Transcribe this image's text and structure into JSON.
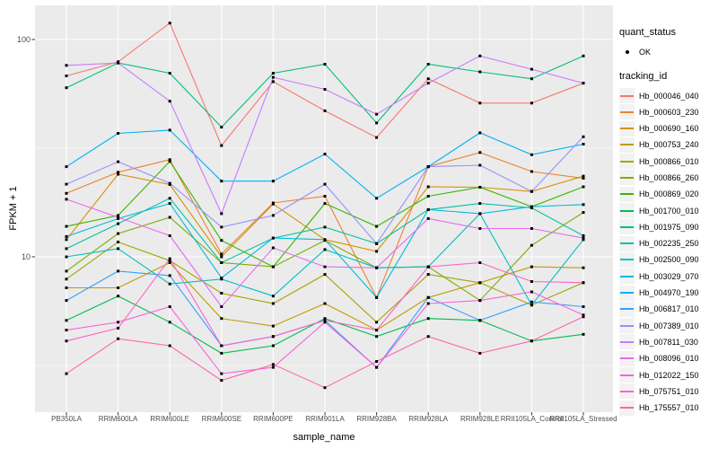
{
  "chart_data": {
    "type": "line",
    "title": "",
    "xlabel": "sample_name",
    "ylabel": "FPKM + 1",
    "y_scale": "log10",
    "ylim": [
      1.9,
      140
    ],
    "grid": true,
    "legend_position": "right",
    "x_categories": [
      "PB350LA",
      "RRIM600LA",
      "RRIM600LE",
      "RRIM600SE",
      "RRIM600PE",
      "RRIM901LA",
      "RRIM928BA",
      "RRIM928LA",
      "RRIM928LE",
      "RRII105LA_Control",
      "RRII105LA_Stressed"
    ],
    "y_ticks": [
      {
        "value": 100,
        "label": "100"
      },
      {
        "value": 10,
        "label": "10"
      }
    ],
    "y_minor_ticks": [
      31.623,
      3.1623
    ],
    "legend": {
      "quant_status": {
        "title": "quant_status",
        "items": [
          {
            "label": "OK",
            "marker": "point",
            "color": "#000000"
          }
        ]
      },
      "tracking_id": {
        "title": "tracking_id"
      }
    },
    "series": [
      {
        "name": "Hb_000046_040",
        "color": "#F8766D",
        "values": [
          68,
          79,
          119,
          32.5,
          64,
          47,
          35.4,
          66,
          51,
          51,
          63
        ]
      },
      {
        "name": "Hb_000603_230",
        "color": "#EA8331",
        "values": [
          19.6,
          24.5,
          28,
          10.3,
          17.7,
          19,
          6.5,
          26,
          30.2,
          24.7,
          23
        ]
      },
      {
        "name": "Hb_000690_160",
        "color": "#D89000",
        "values": [
          12,
          24,
          21.5,
          10,
          17.5,
          12,
          10.6,
          21,
          20.9,
          20,
          23.5
        ]
      },
      {
        "name": "Hb_000753_240",
        "color": "#C09B00",
        "values": [
          7.2,
          7.2,
          9.4,
          5.2,
          4.8,
          6.1,
          4.6,
          6.5,
          7.6,
          9,
          8.9
        ]
      },
      {
        "name": "Hb_000866_010",
        "color": "#A3A500",
        "values": [
          7.9,
          11.7,
          9.6,
          6.8,
          6.1,
          8.3,
          5.0,
          8.3,
          7.6,
          6,
          7.6
        ]
      },
      {
        "name": "Hb_000866_260",
        "color": "#7CAE00",
        "values": [
          8.6,
          12.8,
          15.2,
          9.4,
          9,
          11.9,
          8.9,
          9,
          6.3,
          11.3,
          16
        ]
      },
      {
        "name": "Hb_000869_020",
        "color": "#39B600",
        "values": [
          13.8,
          15.5,
          27.5,
          11.9,
          9,
          17.6,
          13.8,
          19,
          20.9,
          17,
          21
        ]
      },
      {
        "name": "Hb_001700_010",
        "color": "#00BB4E",
        "values": [
          5.1,
          6.6,
          5.0,
          3.6,
          3.9,
          5.2,
          4.3,
          5.2,
          5.1,
          4.1,
          4.4
        ]
      },
      {
        "name": "Hb_001975_090",
        "color": "#00BF7D",
        "values": [
          60,
          78,
          70,
          39.5,
          70,
          77,
          41.3,
          77,
          71,
          66,
          84
        ]
      },
      {
        "name": "Hb_002235_250",
        "color": "#00C1A3",
        "values": [
          10.9,
          14.2,
          18.6,
          9.4,
          12.2,
          13.7,
          11.5,
          16.5,
          17.6,
          16.8,
          12.5
        ]
      },
      {
        "name": "Hb_002500_090",
        "color": "#00BFC4",
        "values": [
          10,
          10.9,
          7.5,
          7.9,
          6.6,
          10.8,
          8.9,
          9,
          15.8,
          6,
          12
        ]
      },
      {
        "name": "Hb_003029_070",
        "color": "#00BAE0",
        "values": [
          12.4,
          15,
          17.6,
          8,
          12.2,
          12,
          6.5,
          16.5,
          15.8,
          17,
          17.4
        ]
      },
      {
        "name": "Hb_004970_190",
        "color": "#00B0F6",
        "values": [
          26,
          37,
          38.3,
          22.3,
          22.3,
          29.7,
          18.6,
          26,
          37.2,
          29.5,
          33
        ]
      },
      {
        "name": "Hb_006817_010",
        "color": "#35A2FF",
        "values": [
          6.3,
          8.6,
          8.2,
          3.9,
          4.3,
          5.1,
          3.1,
          6.5,
          5.1,
          6.2,
          5.9
        ]
      },
      {
        "name": "Hb_007389_010",
        "color": "#9590FF",
        "values": [
          21.6,
          27.4,
          21.8,
          13.7,
          15.5,
          21.6,
          11.5,
          26,
          26.4,
          20,
          35.7
        ]
      },
      {
        "name": "Hb_007811_030",
        "color": "#C77CFF",
        "values": [
          76,
          78,
          52,
          15.8,
          67,
          59,
          45.3,
          63,
          84,
          73,
          63
        ]
      },
      {
        "name": "Hb_008096_010",
        "color": "#E76BF3",
        "values": [
          18.4,
          15.2,
          12.5,
          5.9,
          11,
          9,
          8.9,
          15,
          13.5,
          13.5,
          12.2
        ]
      },
      {
        "name": "Hb_012022_150",
        "color": "#FA62DB",
        "values": [
          4.6,
          5.0,
          5.9,
          2.9,
          3.1,
          5.0,
          3.1,
          6.1,
          6.3,
          6.9,
          5.4
        ]
      },
      {
        "name": "Hb_075751_010",
        "color": "#FF61CC",
        "values": [
          4.1,
          4.7,
          9.8,
          3.9,
          4.3,
          5.1,
          4.6,
          9,
          9.4,
          7.7,
          7.6
        ]
      },
      {
        "name": "Hb_175557_010",
        "color": "#FF67A4",
        "values": [
          2.9,
          4.2,
          3.9,
          2.7,
          3.2,
          2.5,
          3.3,
          4.3,
          3.6,
          4.1,
          5.3
        ]
      }
    ],
    "style": {
      "panel_bg": "#EBEBEB",
      "grid_color": "#FFFFFF",
      "axis_text_color": "#4D4D4D",
      "tick_color": "#333333",
      "point_color": "#000000",
      "legend_key_bg": "#F2F2F2"
    }
  }
}
